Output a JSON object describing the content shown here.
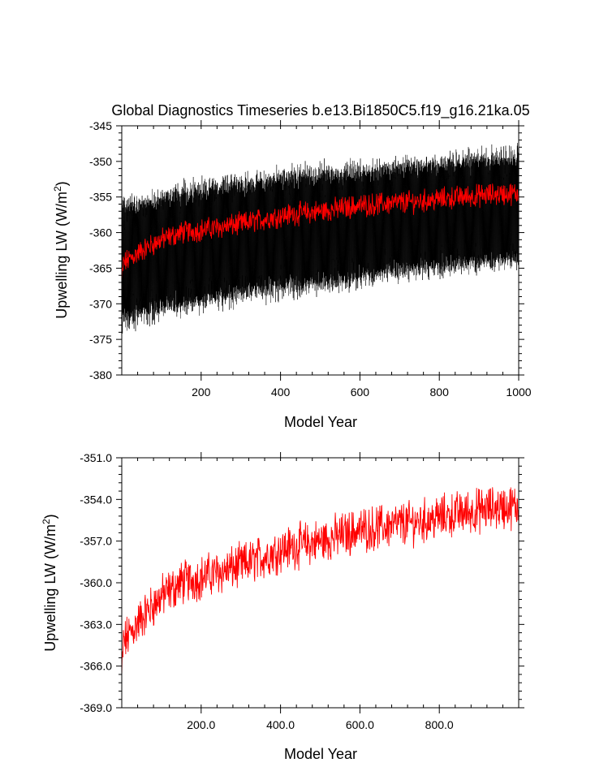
{
  "chart_data": [
    {
      "type": "line",
      "title": "Global Diagnostics Timeseries b.e13.Bi1850C5.f19_g16.21ka.05",
      "xlabel": "Model Year",
      "ylabel": "Upwelling LW (W/m",
      "ylabel_sup": "2",
      "ylabel_end": ")",
      "xlim": [
        0,
        1000
      ],
      "ylim": [
        -380,
        -345
      ],
      "xticks": [
        200,
        400,
        600,
        800,
        1000
      ],
      "xtick_labels": [
        "200",
        "400",
        "600",
        "800",
        "1000"
      ],
      "yticks": [
        -380,
        -375,
        -370,
        -365,
        -360,
        -355,
        -350,
        -345
      ],
      "ytick_labels": [
        "-380",
        "-375",
        "-370",
        "-365",
        "-360",
        "-355",
        "-350",
        "-345"
      ],
      "series": [
        {
          "name": "",
          "kind": "monthly",
          "color": "#000000",
          "description_points": {
            "x": [
              0,
              100,
              200,
              300,
              400,
              500,
              600,
              700,
              800,
              900,
              1000
            ],
            "upper": [
              -356,
              -354.5,
              -353,
              -352.5,
              -351.5,
              -351,
              -350.5,
              -350,
              -349.5,
              -349,
              -348.5
            ],
            "lower": [
              -373,
              -371.5,
              -370.5,
              -369.5,
              -368.5,
              -368,
              -367,
              -366,
              -365.5,
              -365,
              -364.5
            ]
          }
        },
        {
          "name": "",
          "kind": "annual",
          "color": "#ff0000",
          "x": [
            0,
            50,
            100,
            150,
            200,
            250,
            300,
            350,
            400,
            450,
            500,
            550,
            600,
            650,
            700,
            750,
            800,
            850,
            900,
            950,
            1000
          ],
          "values": [
            -364.5,
            -362.5,
            -361.0,
            -360.0,
            -359.6,
            -359.2,
            -358.8,
            -358.2,
            -357.6,
            -357.3,
            -357.0,
            -356.6,
            -356.2,
            -356.0,
            -355.8,
            -355.6,
            -355.3,
            -355.0,
            -354.8,
            -354.6,
            -354.5
          ]
        }
      ]
    },
    {
      "type": "line",
      "title": "",
      "xlabel": "Model Year",
      "ylabel": "Upwelling LW (W/m",
      "ylabel_sup": "2",
      "ylabel_end": ")",
      "xlim": [
        0,
        1000
      ],
      "ylim": [
        -369.0,
        -351.0
      ],
      "xticks": [
        200,
        400,
        600,
        800
      ],
      "xtick_labels": [
        "200.0",
        "400.0",
        "600.0",
        "800.0"
      ],
      "yticks": [
        -369.0,
        -366.0,
        -363.0,
        -360.0,
        -357.0,
        -354.0,
        -351.0
      ],
      "ytick_labels": [
        "-369.0",
        "-366.0",
        "-363.0",
        "-360.0",
        "-357.0",
        "-354.0",
        "-351.0"
      ],
      "series": [
        {
          "name": "",
          "kind": "annual",
          "color": "#ff0000",
          "x": [
            0,
            50,
            100,
            150,
            200,
            250,
            300,
            350,
            400,
            450,
            500,
            550,
            600,
            650,
            700,
            750,
            800,
            850,
            900,
            950,
            1000
          ],
          "values": [
            -364.5,
            -362.5,
            -361.0,
            -360.0,
            -359.6,
            -359.2,
            -358.8,
            -358.2,
            -357.6,
            -357.3,
            -357.0,
            -356.6,
            -356.2,
            -356.0,
            -355.8,
            -355.6,
            -355.3,
            -355.0,
            -354.8,
            -354.6,
            -354.5
          ]
        }
      ]
    }
  ]
}
